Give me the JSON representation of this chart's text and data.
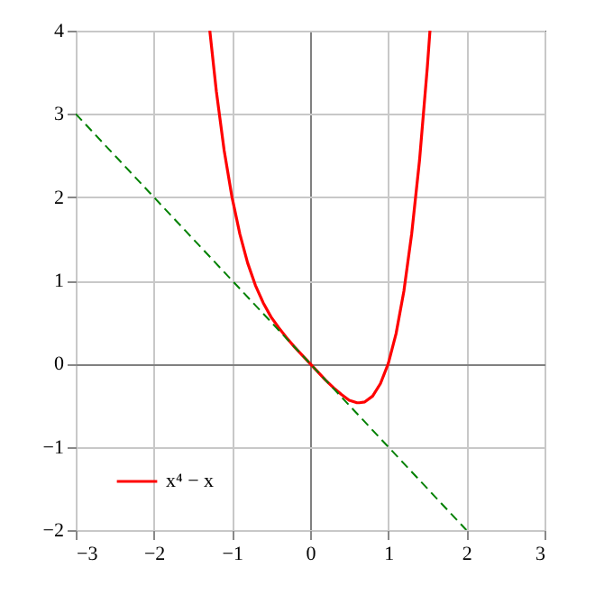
{
  "chart_data": {
    "type": "line",
    "series": [
      {
        "name": "x⁴ − x",
        "color": "#ff0000",
        "line_style": "solid",
        "x": [
          -1.284,
          -1.2,
          -1.1,
          -1,
          -0.9,
          -0.8,
          -0.7,
          -0.6,
          -0.5,
          -0.4,
          -0.3,
          -0.2,
          -0.1,
          0,
          0.1,
          0.2,
          0.3,
          0.4,
          0.5,
          0.6,
          0.63,
          0.7,
          0.8,
          0.9,
          1,
          1.1,
          1.2,
          1.3,
          1.4,
          1.5,
          1.534
        ],
        "values": [
          4,
          3.27,
          2.56,
          2,
          1.56,
          1.21,
          0.94,
          0.73,
          0.56,
          0.43,
          0.31,
          0.2,
          0.1,
          0,
          -0.1,
          -0.2,
          -0.29,
          -0.37,
          -0.44,
          -0.47,
          -0.47,
          -0.46,
          -0.39,
          -0.24,
          0,
          0.36,
          0.87,
          1.56,
          2.44,
          3.56,
          4
        ]
      },
      {
        "color": "#008000",
        "line_style": "dashed",
        "x": [
          -3,
          2
        ],
        "values": [
          3,
          -2
        ]
      }
    ],
    "xlim": [
      -3,
      3
    ],
    "ylim": [
      -2,
      4
    ],
    "xticks": [
      {
        "value": -3,
        "label": "−3"
      },
      {
        "value": -2,
        "label": "−2"
      },
      {
        "value": -1,
        "label": "−1"
      },
      0,
      1,
      2,
      3
    ],
    "yticks": [
      {
        "value": -2,
        "label": "−2"
      },
      {
        "value": -1,
        "label": "−1"
      },
      0,
      1,
      2,
      3,
      4
    ],
    "grid": true,
    "legend": "bottom left",
    "marker": "none"
  }
}
